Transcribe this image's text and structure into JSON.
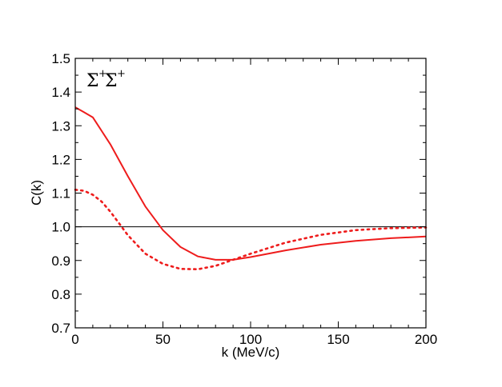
{
  "chart_data": {
    "type": "line",
    "title": "",
    "xlabel": "k (MeV/c)",
    "ylabel": "C(k)",
    "xlim": [
      0,
      200
    ],
    "ylim": [
      0.7,
      1.5
    ],
    "xticks": [
      "0",
      "50",
      "100",
      "150",
      "200"
    ],
    "yticks": [
      "0.7",
      "0.8",
      "0.9",
      "1.0",
      "1.1",
      "1.2",
      "1.3",
      "1.4",
      "1.5"
    ],
    "grid": false,
    "annotation": {
      "symbol": "Σ",
      "superscript": "+",
      "location": "top-left"
    },
    "reference_line": {
      "y": 1.0,
      "color": "#000000"
    },
    "series": [
      {
        "name": "solid",
        "style": "solid",
        "color": "#ee1c1c",
        "x": [
          0,
          5,
          10,
          20,
          30,
          40,
          50,
          60,
          70,
          80,
          90,
          100,
          120,
          140,
          160,
          180,
          200
        ],
        "y": [
          1.355,
          1.34,
          1.325,
          1.245,
          1.15,
          1.06,
          0.99,
          0.94,
          0.912,
          0.902,
          0.902,
          0.91,
          0.93,
          0.947,
          0.958,
          0.966,
          0.971
        ]
      },
      {
        "name": "dotted",
        "style": "dotted",
        "color": "#ee1c1c",
        "x": [
          0,
          5,
          10,
          15,
          20,
          25,
          30,
          40,
          50,
          60,
          70,
          80,
          90,
          100,
          120,
          140,
          160,
          180,
          200
        ],
        "y": [
          1.11,
          1.107,
          1.095,
          1.075,
          1.045,
          1.01,
          0.975,
          0.92,
          0.89,
          0.875,
          0.874,
          0.884,
          0.902,
          0.92,
          0.953,
          0.976,
          0.99,
          0.996,
          0.998
        ]
      }
    ]
  }
}
